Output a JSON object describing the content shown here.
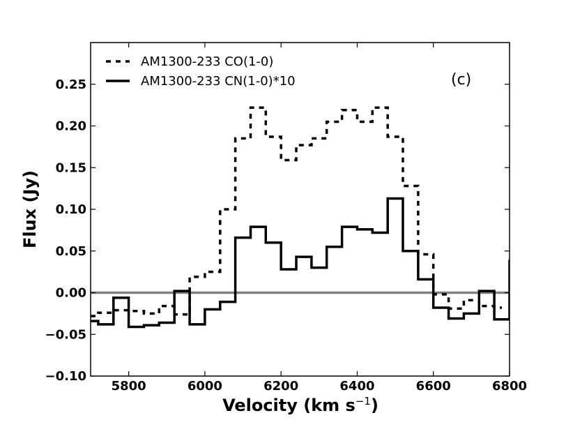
{
  "chart_data": {
    "type": "line",
    "drawstyle": "steps-mid",
    "annotation": "(c)",
    "xlabel": "Velocity (km s",
    "xlabel_sup": "−1",
    "xlabel_close": ")",
    "ylabel": "Flux (Jy)",
    "xlim": [
      5700,
      6800
    ],
    "ylim": [
      -0.1,
      0.3
    ],
    "xticks": [
      5800,
      6000,
      6200,
      6400,
      6600,
      6800
    ],
    "xtick_labels": [
      "5800",
      "6000",
      "6200",
      "6400",
      "6600",
      "6800"
    ],
    "yticks": [
      -0.1,
      -0.05,
      0.0,
      0.05,
      0.1,
      0.15,
      0.2,
      0.25
    ],
    "ytick_labels": [
      "−0.10",
      "−0.05",
      "0.00",
      "0.05",
      "0.10",
      "0.15",
      "0.20",
      "0.25"
    ],
    "zero_line": {
      "value": 0.0,
      "color": "#808080"
    },
    "legend_position": "top-left",
    "series": [
      {
        "name": "AM1300-233 CO(1-0)",
        "style": "dashed",
        "color": "#000000",
        "x": [
          5700,
          5740,
          5780,
          5820,
          5860,
          5900,
          5940,
          5980,
          6020,
          6060,
          6100,
          6140,
          6180,
          6220,
          6260,
          6300,
          6340,
          6380,
          6420,
          6460,
          6500,
          6540,
          6580,
          6620,
          6660,
          6700,
          6740,
          6780
        ],
        "values": [
          -0.028,
          -0.024,
          -0.021,
          -0.022,
          -0.025,
          -0.016,
          -0.026,
          0.019,
          0.025,
          0.1,
          0.185,
          0.222,
          0.187,
          0.159,
          0.177,
          0.185,
          0.205,
          0.219,
          0.205,
          0.222,
          0.187,
          0.128,
          0.046,
          -0.002,
          -0.019,
          -0.009,
          -0.016,
          -0.018
        ]
      },
      {
        "name": "AM1300-233 CN(1-0)*10",
        "style": "solid",
        "color": "#000000",
        "x": [
          5700,
          5740,
          5780,
          5820,
          5860,
          5900,
          5940,
          5980,
          6020,
          6060,
          6100,
          6140,
          6180,
          6220,
          6260,
          6300,
          6340,
          6380,
          6420,
          6460,
          6500,
          6540,
          6580,
          6620,
          6660,
          6700,
          6740,
          6780,
          6820
        ],
        "values": [
          -0.034,
          -0.038,
          -0.006,
          -0.041,
          -0.039,
          -0.036,
          0.002,
          -0.038,
          -0.02,
          -0.011,
          0.066,
          0.079,
          0.06,
          0.028,
          0.043,
          0.03,
          0.055,
          0.079,
          0.076,
          0.072,
          0.113,
          0.05,
          0.016,
          -0.018,
          -0.031,
          -0.025,
          0.002,
          -0.032,
          0.038
        ]
      }
    ]
  }
}
